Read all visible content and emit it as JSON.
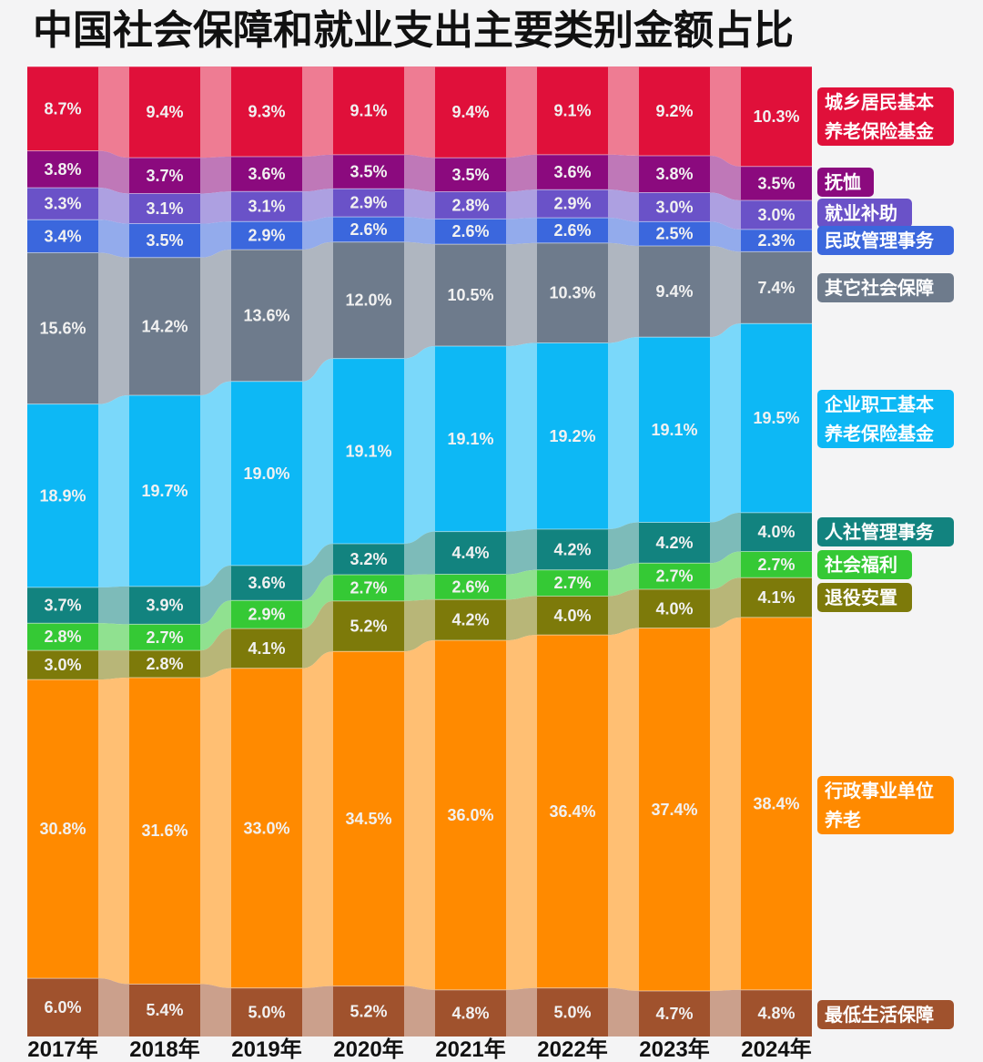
{
  "chart_data": {
    "type": "bar",
    "subtype": "stacked-100-percent",
    "title": "中国社会保障和就业支出主要类别金额占比",
    "xlabel": "",
    "ylabel": "",
    "ylim": [
      0,
      100
    ],
    "grid": false,
    "legend_position": "right",
    "categories": [
      "2017年",
      "2018年",
      "2019年",
      "2020年",
      "2021年",
      "2022年",
      "2023年",
      "2024年"
    ],
    "series": [
      {
        "name": "城乡居民基本养老保险基金",
        "color": "#e0103a",
        "values": [
          8.7,
          9.4,
          9.3,
          9.1,
          9.4,
          9.1,
          9.2,
          10.3
        ]
      },
      {
        "name": "抚恤",
        "color": "#8b0a7e",
        "values": [
          3.8,
          3.7,
          3.6,
          3.5,
          3.5,
          3.6,
          3.8,
          3.5
        ]
      },
      {
        "name": "就业补助",
        "color": "#6a52c8",
        "values": [
          3.3,
          3.1,
          3.1,
          2.9,
          2.8,
          2.9,
          3.0,
          3.0
        ]
      },
      {
        "name": "民政管理事务",
        "color": "#3b67dd",
        "values": [
          3.4,
          3.5,
          2.9,
          2.6,
          2.6,
          2.6,
          2.5,
          2.3
        ]
      },
      {
        "name": "其它社会保障",
        "color": "#6e7b8c",
        "values": [
          15.6,
          14.2,
          13.6,
          12.0,
          10.5,
          10.3,
          9.4,
          7.4
        ]
      },
      {
        "name": "企业职工基本养老保险基金",
        "color": "#0db8f5",
        "values": [
          18.9,
          19.7,
          19.0,
          19.1,
          19.1,
          19.2,
          19.1,
          19.5
        ]
      },
      {
        "name": "人社管理事务",
        "color": "#12837f",
        "values": [
          3.7,
          3.9,
          3.6,
          3.2,
          4.4,
          4.2,
          4.2,
          4.0
        ]
      },
      {
        "name": "社会福利",
        "color": "#35c935",
        "values": [
          2.8,
          2.7,
          2.9,
          2.7,
          2.6,
          2.7,
          2.7,
          2.7
        ]
      },
      {
        "name": "退役安置",
        "color": "#7d7a0a",
        "values": [
          3.0,
          2.8,
          4.1,
          5.2,
          4.2,
          4.0,
          4.0,
          4.1
        ]
      },
      {
        "name": "行政事业单位养老",
        "color": "#ff8a00",
        "values": [
          30.8,
          31.6,
          33.0,
          34.5,
          36.0,
          36.4,
          37.4,
          38.4
        ]
      },
      {
        "name": "最低生活保障",
        "color": "#a0522d",
        "values": [
          6.0,
          5.4,
          5.0,
          5.2,
          4.8,
          5.0,
          4.7,
          4.8
        ]
      }
    ],
    "legend": [
      {
        "lines": [
          "城乡居民基本",
          "养老保险基金"
        ],
        "color": "#e0103a"
      },
      {
        "lines": [
          "抚恤"
        ],
        "color": "#8b0a7e"
      },
      {
        "lines": [
          "就业补助"
        ],
        "color": "#6a52c8"
      },
      {
        "lines": [
          "民政管理事务"
        ],
        "color": "#3b67dd"
      },
      {
        "lines": [
          "其它社会保障"
        ],
        "color": "#6e7b8c"
      },
      {
        "lines": [
          "企业职工基本",
          "养老保险基金"
        ],
        "color": "#0db8f5"
      },
      {
        "lines": [
          "人社管理事务"
        ],
        "color": "#12837f"
      },
      {
        "lines": [
          "社会福利"
        ],
        "color": "#35c935"
      },
      {
        "lines": [
          "退役安置"
        ],
        "color": "#7d7a0a"
      },
      {
        "lines": [
          "行政事业单位",
          "养老"
        ],
        "color": "#ff8a00"
      },
      {
        "lines": [
          "最低生活保障"
        ],
        "color": "#a0522d"
      }
    ]
  }
}
